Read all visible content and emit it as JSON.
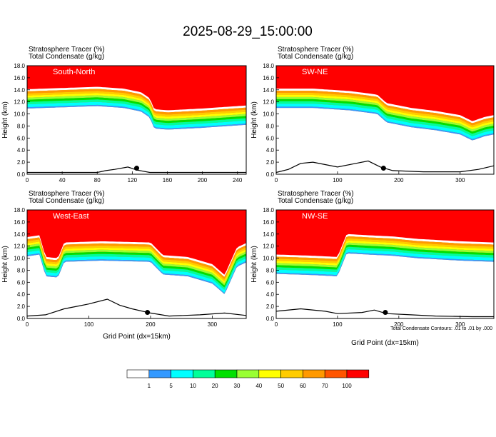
{
  "title": "2025-08-29_15:00:00",
  "colors": {
    "levels": [
      "#ffffff",
      "#3399ff",
      "#00ffff",
      "#00ff99",
      "#00e000",
      "#99ff33",
      "#ffff00",
      "#ffcc00",
      "#ff9900",
      "#ff5500",
      "#ff0000"
    ],
    "contour": "#000000",
    "terrain": "#000000"
  },
  "chart_data": [
    {
      "type": "heatmap",
      "panel_label": "South-North",
      "subtitle_1": "Stratosphere Tracer   (%)",
      "subtitle_2": "Total Condensate   (g/kg)",
      "ylabel": "Height (km)",
      "xlabel": "",
      "xlim": [
        0,
        250
      ],
      "ylim": [
        0,
        18
      ],
      "xticks": [
        0,
        40,
        80,
        120,
        160,
        200,
        240
      ],
      "yticks": [
        0.0,
        2.0,
        4.0,
        6.0,
        8.0,
        10.0,
        12.0,
        14.0,
        16.0,
        18.0
      ],
      "tropopause_km": [
        [
          0,
          14.1
        ],
        [
          40,
          14.3
        ],
        [
          80,
          14.5
        ],
        [
          110,
          14.2
        ],
        [
          130,
          13.6
        ],
        [
          140,
          12.6
        ],
        [
          145,
          10.8
        ],
        [
          160,
          10.6
        ],
        [
          200,
          10.9
        ],
        [
          230,
          11.2
        ],
        [
          250,
          11.4
        ]
      ],
      "terrain_km": [
        [
          0,
          0.3
        ],
        [
          80,
          0.3
        ],
        [
          90,
          0.6
        ],
        [
          100,
          0.8
        ],
        [
          115,
          1.2
        ],
        [
          125,
          0.7
        ],
        [
          140,
          0.3
        ],
        [
          250,
          0.3
        ]
      ],
      "marker": [
        125,
        1.0
      ]
    },
    {
      "type": "heatmap",
      "panel_label": "SW-NE",
      "subtitle_1": "Stratosphere Tracer   (%)",
      "subtitle_2": "Total Condensate   (g/kg)",
      "ylabel": "Height (km)",
      "xlabel": "",
      "xlim": [
        0,
        355
      ],
      "ylim": [
        0,
        18
      ],
      "xticks": [
        0,
        100,
        200,
        300
      ],
      "yticks": [
        0.0,
        2.0,
        4.0,
        6.0,
        8.0,
        10.0,
        12.0,
        14.0,
        16.0,
        18.0
      ],
      "tropopause_km": [
        [
          0,
          14.2
        ],
        [
          60,
          14.2
        ],
        [
          120,
          13.8
        ],
        [
          165,
          13.2
        ],
        [
          180,
          11.8
        ],
        [
          220,
          11.0
        ],
        [
          260,
          10.5
        ],
        [
          300,
          9.8
        ],
        [
          320,
          8.8
        ],
        [
          340,
          9.5
        ],
        [
          355,
          9.8
        ]
      ],
      "terrain_km": [
        [
          0,
          0.3
        ],
        [
          20,
          0.8
        ],
        [
          40,
          1.8
        ],
        [
          60,
          2.0
        ],
        [
          80,
          1.6
        ],
        [
          100,
          1.2
        ],
        [
          130,
          1.8
        ],
        [
          150,
          2.2
        ],
        [
          170,
          1.2
        ],
        [
          190,
          0.6
        ],
        [
          240,
          0.4
        ],
        [
          300,
          0.4
        ],
        [
          330,
          0.8
        ],
        [
          355,
          1.4
        ]
      ],
      "marker": [
        175,
        1.0
      ]
    },
    {
      "type": "heatmap",
      "panel_label": "West-East",
      "subtitle_1": "Stratosphere Tracer   (%)",
      "subtitle_2": "Total Condensate   (g/kg)",
      "ylabel": "Height (km)",
      "xlabel": "Grid Point (dx=15km)",
      "xlim": [
        0,
        355
      ],
      "ylim": [
        0,
        18
      ],
      "xticks": [
        0,
        100,
        200,
        300
      ],
      "yticks": [
        0.0,
        2.0,
        4.0,
        6.0,
        8.0,
        10.0,
        12.0,
        14.0,
        16.0,
        18.0
      ],
      "tropopause_km": [
        [
          0,
          13.5
        ],
        [
          20,
          13.8
        ],
        [
          30,
          10.2
        ],
        [
          50,
          10.0
        ],
        [
          60,
          12.6
        ],
        [
          120,
          12.8
        ],
        [
          200,
          12.6
        ],
        [
          220,
          10.5
        ],
        [
          260,
          10.2
        ],
        [
          300,
          9.0
        ],
        [
          320,
          7.2
        ],
        [
          340,
          11.8
        ],
        [
          355,
          12.5
        ]
      ],
      "terrain_km": [
        [
          0,
          0.4
        ],
        [
          30,
          0.6
        ],
        [
          60,
          1.6
        ],
        [
          80,
          2.0
        ],
        [
          100,
          2.4
        ],
        [
          130,
          3.2
        ],
        [
          150,
          2.2
        ],
        [
          170,
          1.6
        ],
        [
          200,
          0.9
        ],
        [
          230,
          0.4
        ],
        [
          280,
          0.6
        ],
        [
          320,
          0.9
        ],
        [
          355,
          0.5
        ]
      ],
      "marker": [
        195,
        1.0
      ]
    },
    {
      "type": "heatmap",
      "panel_label": "NW-SE",
      "subtitle_1": "Stratosphere Tracer   (%)",
      "subtitle_2": "Total Condensate   (g/kg)",
      "ylabel": "Height (km)",
      "xlabel": "Grid Point (dx=15km)",
      "xlim": [
        0,
        355
      ],
      "ylim": [
        0,
        18
      ],
      "xticks": [
        0,
        100,
        200,
        300
      ],
      "yticks": [
        0.0,
        2.0,
        4.0,
        6.0,
        8.0,
        10.0,
        12.0,
        14.0,
        16.0,
        18.0
      ],
      "tropopause_km": [
        [
          0,
          10.6
        ],
        [
          60,
          10.4
        ],
        [
          100,
          10.2
        ],
        [
          115,
          14.0
        ],
        [
          150,
          13.8
        ],
        [
          190,
          13.6
        ],
        [
          230,
          13.2
        ],
        [
          300,
          12.8
        ],
        [
          355,
          12.6
        ]
      ],
      "terrain_km": [
        [
          0,
          1.2
        ],
        [
          40,
          1.6
        ],
        [
          80,
          1.2
        ],
        [
          100,
          0.8
        ],
        [
          140,
          1.0
        ],
        [
          160,
          1.4
        ],
        [
          180,
          0.8
        ],
        [
          220,
          0.6
        ],
        [
          260,
          0.4
        ],
        [
          320,
          0.3
        ],
        [
          355,
          0.3
        ]
      ],
      "marker": [
        178,
        1.0
      ]
    }
  ],
  "contour_note": "Total Condensate Contours: .01 to .01 by .000",
  "colorbar": {
    "labels": [
      "1",
      "5",
      "10",
      "20",
      "30",
      "40",
      "50",
      "60",
      "70",
      "100"
    ]
  }
}
